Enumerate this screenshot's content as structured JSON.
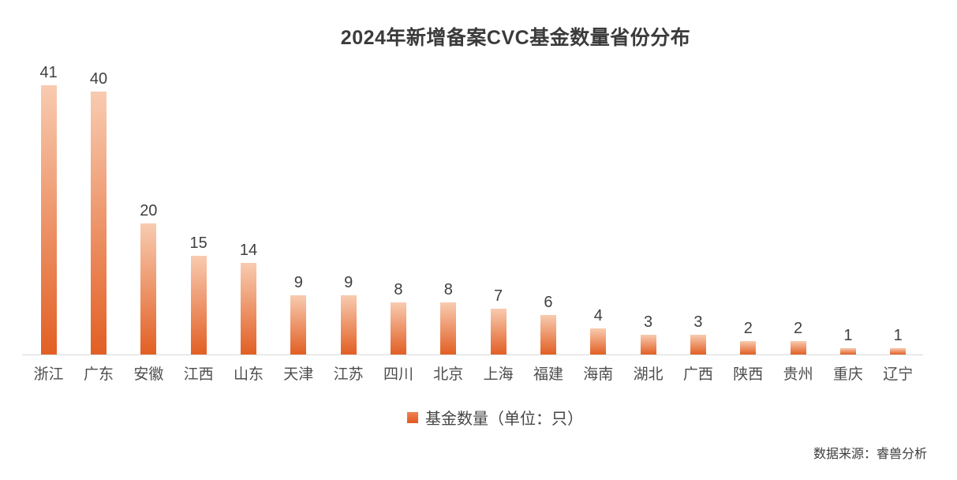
{
  "chart_data": {
    "type": "bar",
    "title": "2024年新增备案CVC基金数量省份分布",
    "categories": [
      "浙江",
      "广东",
      "安徽",
      "江西",
      "山东",
      "天津",
      "江苏",
      "四川",
      "北京",
      "上海",
      "福建",
      "海南",
      "湖北",
      "广西",
      "陕西",
      "贵州",
      "重庆",
      "辽宁"
    ],
    "values": [
      41,
      40,
      20,
      15,
      14,
      9,
      9,
      8,
      8,
      7,
      6,
      4,
      3,
      3,
      2,
      2,
      1,
      1
    ],
    "series_name": "基金数量（单位：只）",
    "xlabel": "",
    "ylabel": "",
    "ylim": [
      0,
      45.6
    ],
    "grid": false,
    "y_axis_shown": false,
    "value_labels_shown": true,
    "legend_position": "bottom",
    "bar_color_top": "#f8cbb0",
    "bar_color_bottom": "#e25f24",
    "axis_line_color": "#d9d9d9"
  },
  "legend": {
    "label": "基金数量（单位：只）",
    "marker_icon": "square-icon",
    "marker_color_top": "#ef8150",
    "marker_color_bottom": "#e2591f"
  },
  "footer": {
    "source": "数据来源：睿兽分析"
  }
}
